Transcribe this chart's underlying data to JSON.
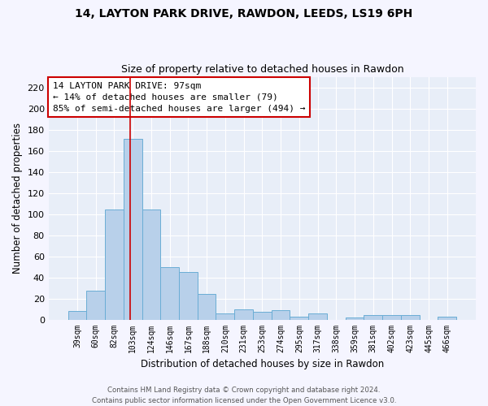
{
  "title1": "14, LAYTON PARK DRIVE, RAWDON, LEEDS, LS19 6PH",
  "title2": "Size of property relative to detached houses in Rawdon",
  "xlabel": "Distribution of detached houses by size in Rawdon",
  "ylabel": "Number of detached properties",
  "categories": [
    "39sqm",
    "60sqm",
    "82sqm",
    "103sqm",
    "124sqm",
    "146sqm",
    "167sqm",
    "188sqm",
    "210sqm",
    "231sqm",
    "253sqm",
    "274sqm",
    "295sqm",
    "317sqm",
    "338sqm",
    "359sqm",
    "381sqm",
    "402sqm",
    "423sqm",
    "445sqm",
    "466sqm"
  ],
  "values": [
    8,
    27,
    104,
    171,
    104,
    50,
    45,
    24,
    6,
    10,
    7,
    9,
    3,
    6,
    0,
    2,
    4,
    4,
    4,
    0,
    3
  ],
  "bar_color": "#b8d0ea",
  "bar_edge_color": "#6aadd5",
  "bg_color": "#e8eef8",
  "grid_color": "#ffffff",
  "vline_x_index": 2.85,
  "vline_color": "#cc0000",
  "annotation_text": "14 LAYTON PARK DRIVE: 97sqm\n← 14% of detached houses are smaller (79)\n85% of semi-detached houses are larger (494) →",
  "annotation_box_color": "#ffffff",
  "annotation_box_edge": "#cc0000",
  "footnote": "Contains HM Land Registry data © Crown copyright and database right 2024.\nContains public sector information licensed under the Open Government Licence v3.0.",
  "ylim": [
    0,
    230
  ],
  "yticks": [
    0,
    20,
    40,
    60,
    80,
    100,
    120,
    140,
    160,
    180,
    200,
    220
  ],
  "fig_width": 6.0,
  "fig_height": 5.0,
  "fig_bg": "#f5f5ff"
}
